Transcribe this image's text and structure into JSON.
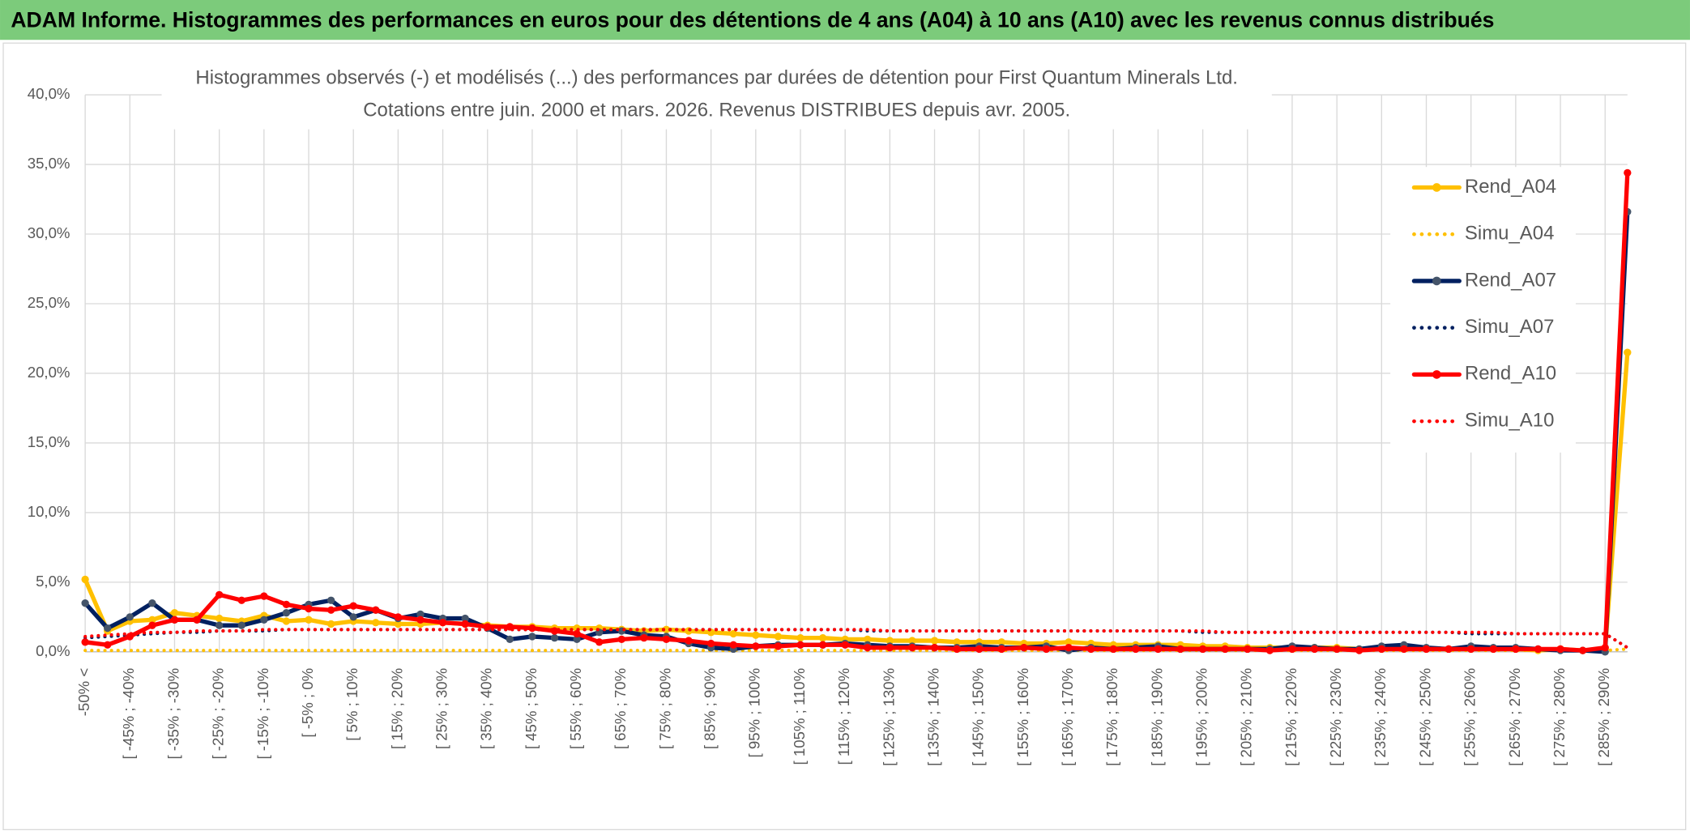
{
  "header": {
    "title": "ADAM Informe. Histogrammes des performances en euros pour des détentions de 4 ans (A04) à 10 ans (A10) avec les revenus connus distribués"
  },
  "chart_data": {
    "type": "line",
    "title": "Histogrammes observés (-) et modélisés (...) des performances par durées de détention pour First Quantum Minerals Ltd.",
    "subtitle": "Cotations entre juin. 2000 et mars. 2026. Revenus DISTRIBUES depuis avr. 2005.",
    "categories": [
      "-50% <",
      null,
      "[ -45% ; -40%",
      null,
      "[ -35% ; -30%",
      null,
      "[ -25% ; -20%",
      null,
      "[ -15% ; -10%",
      null,
      "[ -5% ; 0%",
      null,
      "[ 5% ; 10%",
      null,
      "[ 15% ; 20%",
      null,
      "[ 25% ; 30%",
      null,
      "[ 35% ; 40%",
      null,
      "[ 45% ; 50%",
      null,
      "[ 55% ; 60%",
      null,
      "[ 65% ; 70%",
      null,
      "[ 75% ; 80%",
      null,
      "[ 85% ; 90%",
      null,
      "[ 95% ; 100%",
      null,
      "[ 105% ; 110%",
      null,
      "[ 115% ; 120%",
      null,
      "[ 125% ; 130%",
      null,
      "[ 135% ; 140%",
      null,
      "[ 145% ; 150%",
      null,
      "[ 155% ; 160%",
      null,
      "[ 165% ; 170%",
      null,
      "[ 175% ; 180%",
      null,
      "[ 185% ; 190%",
      null,
      "[ 195% ; 200%",
      null,
      "[ 205% ; 210%",
      null,
      "[ 215% ; 220%",
      null,
      "[ 225% ; 230%",
      null,
      "[ 235% ; 240%",
      null,
      "[ 245% ; 250%",
      null,
      "[ 255% ; 260%",
      null,
      "[ 265% ; 270%",
      null,
      "[ 275% ; 280%",
      null,
      "[ 285% ; 290%",
      null
    ],
    "series": [
      {
        "name": "Rend_A04",
        "color": "#ffc000",
        "line_style": "solid",
        "values": [
          5.2,
          1.5,
          2.2,
          2.3,
          2.8,
          2.6,
          2.4,
          2.2,
          2.6,
          2.2,
          2.3,
          2.0,
          2.2,
          2.1,
          2.0,
          2.0,
          2.1,
          2.0,
          1.9,
          1.8,
          1.8,
          1.7,
          1.7,
          1.7,
          1.6,
          1.5,
          1.6,
          1.5,
          1.4,
          1.3,
          1.2,
          1.1,
          1.0,
          1.0,
          0.9,
          0.9,
          0.8,
          0.8,
          0.8,
          0.7,
          0.7,
          0.7,
          0.6,
          0.6,
          0.7,
          0.6,
          0.5,
          0.5,
          0.5,
          0.5,
          0.4,
          0.4,
          0.3,
          0.3,
          0.3,
          0.3,
          0.3,
          0.2,
          0.2,
          0.3,
          0.2,
          0.2,
          0.2,
          0.2,
          0.2,
          0.1,
          0.2,
          0.1,
          0.2,
          21.5
        ]
      },
      {
        "name": "Simu_A04",
        "color": "#ffc000",
        "line_style": "dotted",
        "values": [
          0.1,
          0.1,
          0.1,
          0.1,
          0.1,
          0.1,
          0.1,
          0.1,
          0.1,
          0.1,
          0.1,
          0.1,
          0.1,
          0.1,
          0.1,
          0.1,
          0.1,
          0.1,
          0.1,
          0.1,
          0.1,
          0.1,
          0.1,
          0.1,
          0.1,
          0.1,
          0.1,
          0.1,
          0.1,
          0.1,
          0.1,
          0.1,
          0.1,
          0.1,
          0.1,
          0.1,
          0.1,
          0.1,
          0.1,
          0.1,
          0.1,
          0.1,
          0.1,
          0.1,
          0.1,
          0.1,
          0.1,
          0.1,
          0.1,
          0.1,
          0.1,
          0.1,
          0.1,
          0.1,
          0.1,
          0.1,
          0.1,
          0.1,
          0.1,
          0.1,
          0.1,
          0.1,
          0.1,
          0.1,
          0.1,
          0.1,
          0.1,
          0.1,
          0.1,
          0.2
        ]
      },
      {
        "name": "Rend_A07",
        "color": "#002060",
        "line_style": "solid",
        "values": [
          3.5,
          1.7,
          2.5,
          3.5,
          2.3,
          2.3,
          1.9,
          1.9,
          2.3,
          2.8,
          3.4,
          3.7,
          2.5,
          3.0,
          2.4,
          2.7,
          2.4,
          2.4,
          1.7,
          0.9,
          1.1,
          1.0,
          0.9,
          1.4,
          1.5,
          1.2,
          1.1,
          0.6,
          0.3,
          0.2,
          0.4,
          0.5,
          0.5,
          0.5,
          0.6,
          0.5,
          0.4,
          0.4,
          0.3,
          0.3,
          0.4,
          0.3,
          0.3,
          0.4,
          0.1,
          0.3,
          0.2,
          0.3,
          0.4,
          0.2,
          0.2,
          0.2,
          0.2,
          0.2,
          0.4,
          0.3,
          0.2,
          0.2,
          0.4,
          0.5,
          0.3,
          0.2,
          0.4,
          0.3,
          0.3,
          0.2,
          0.1,
          0.1,
          0.0,
          31.6
        ]
      },
      {
        "name": "Simu_A07",
        "color": "#002060",
        "line_style": "dotted",
        "values": [
          1.0,
          1.1,
          1.2,
          1.3,
          1.4,
          1.4,
          1.5,
          1.5,
          1.5,
          1.6,
          1.6,
          1.6,
          1.6,
          1.6,
          1.6,
          1.6,
          1.6,
          1.6,
          1.6,
          1.6,
          1.6,
          1.6,
          1.6,
          1.6,
          1.6,
          1.6,
          1.6,
          1.6,
          1.6,
          1.6,
          1.6,
          1.6,
          1.6,
          1.6,
          1.6,
          1.5,
          1.5,
          1.5,
          1.5,
          1.5,
          1.5,
          1.5,
          1.5,
          1.5,
          1.5,
          1.5,
          1.5,
          1.5,
          1.5,
          1.5,
          1.4,
          1.4,
          1.4,
          1.4,
          1.4,
          1.4,
          1.4,
          1.4,
          1.4,
          1.4,
          1.4,
          1.4,
          1.3,
          1.3,
          1.3,
          1.3,
          1.3,
          1.3,
          1.3,
          0.3
        ]
      },
      {
        "name": "Rend_A10",
        "color": "#ff0000",
        "line_style": "solid",
        "values": [
          0.7,
          0.5,
          1.1,
          1.9,
          2.3,
          2.3,
          4.1,
          3.7,
          4.0,
          3.4,
          3.1,
          3.0,
          3.3,
          3.0,
          2.5,
          2.3,
          2.1,
          2.0,
          1.8,
          1.8,
          1.7,
          1.5,
          1.3,
          0.7,
          0.9,
          1.0,
          0.9,
          0.8,
          0.6,
          0.5,
          0.4,
          0.4,
          0.5,
          0.5,
          0.5,
          0.3,
          0.3,
          0.3,
          0.3,
          0.2,
          0.2,
          0.2,
          0.3,
          0.2,
          0.3,
          0.2,
          0.2,
          0.2,
          0.2,
          0.2,
          0.2,
          0.2,
          0.2,
          0.1,
          0.2,
          0.2,
          0.2,
          0.1,
          0.2,
          0.2,
          0.2,
          0.2,
          0.2,
          0.2,
          0.2,
          0.2,
          0.2,
          0.1,
          0.3,
          34.4
        ]
      },
      {
        "name": "Simu_A10",
        "color": "#ff0000",
        "line_style": "dotted",
        "values": [
          1.1,
          1.2,
          1.3,
          1.4,
          1.4,
          1.5,
          1.5,
          1.5,
          1.6,
          1.6,
          1.6,
          1.6,
          1.6,
          1.6,
          1.6,
          1.6,
          1.6,
          1.6,
          1.6,
          1.6,
          1.6,
          1.6,
          1.6,
          1.6,
          1.6,
          1.6,
          1.6,
          1.6,
          1.6,
          1.6,
          1.6,
          1.6,
          1.6,
          1.6,
          1.6,
          1.6,
          1.5,
          1.5,
          1.5,
          1.5,
          1.5,
          1.5,
          1.5,
          1.5,
          1.5,
          1.5,
          1.5,
          1.5,
          1.5,
          1.5,
          1.5,
          1.4,
          1.4,
          1.4,
          1.4,
          1.4,
          1.4,
          1.4,
          1.4,
          1.4,
          1.4,
          1.4,
          1.4,
          1.4,
          1.3,
          1.3,
          1.3,
          1.3,
          1.3,
          0.3
        ]
      }
    ],
    "ylim": [
      0,
      40
    ],
    "yticks": [
      {
        "value": 0,
        "label": "0,0%"
      },
      {
        "value": 5,
        "label": "5,0%"
      },
      {
        "value": 10,
        "label": "10,0%"
      },
      {
        "value": 15,
        "label": "15,0%"
      },
      {
        "value": 20,
        "label": "20,0%"
      },
      {
        "value": 25,
        "label": "25,0%"
      },
      {
        "value": 30,
        "label": "30,0%"
      },
      {
        "value": 35,
        "label": "35,0%"
      },
      {
        "value": 40,
        "label": "40,0%"
      }
    ],
    "grid": true,
    "legend": "right"
  }
}
